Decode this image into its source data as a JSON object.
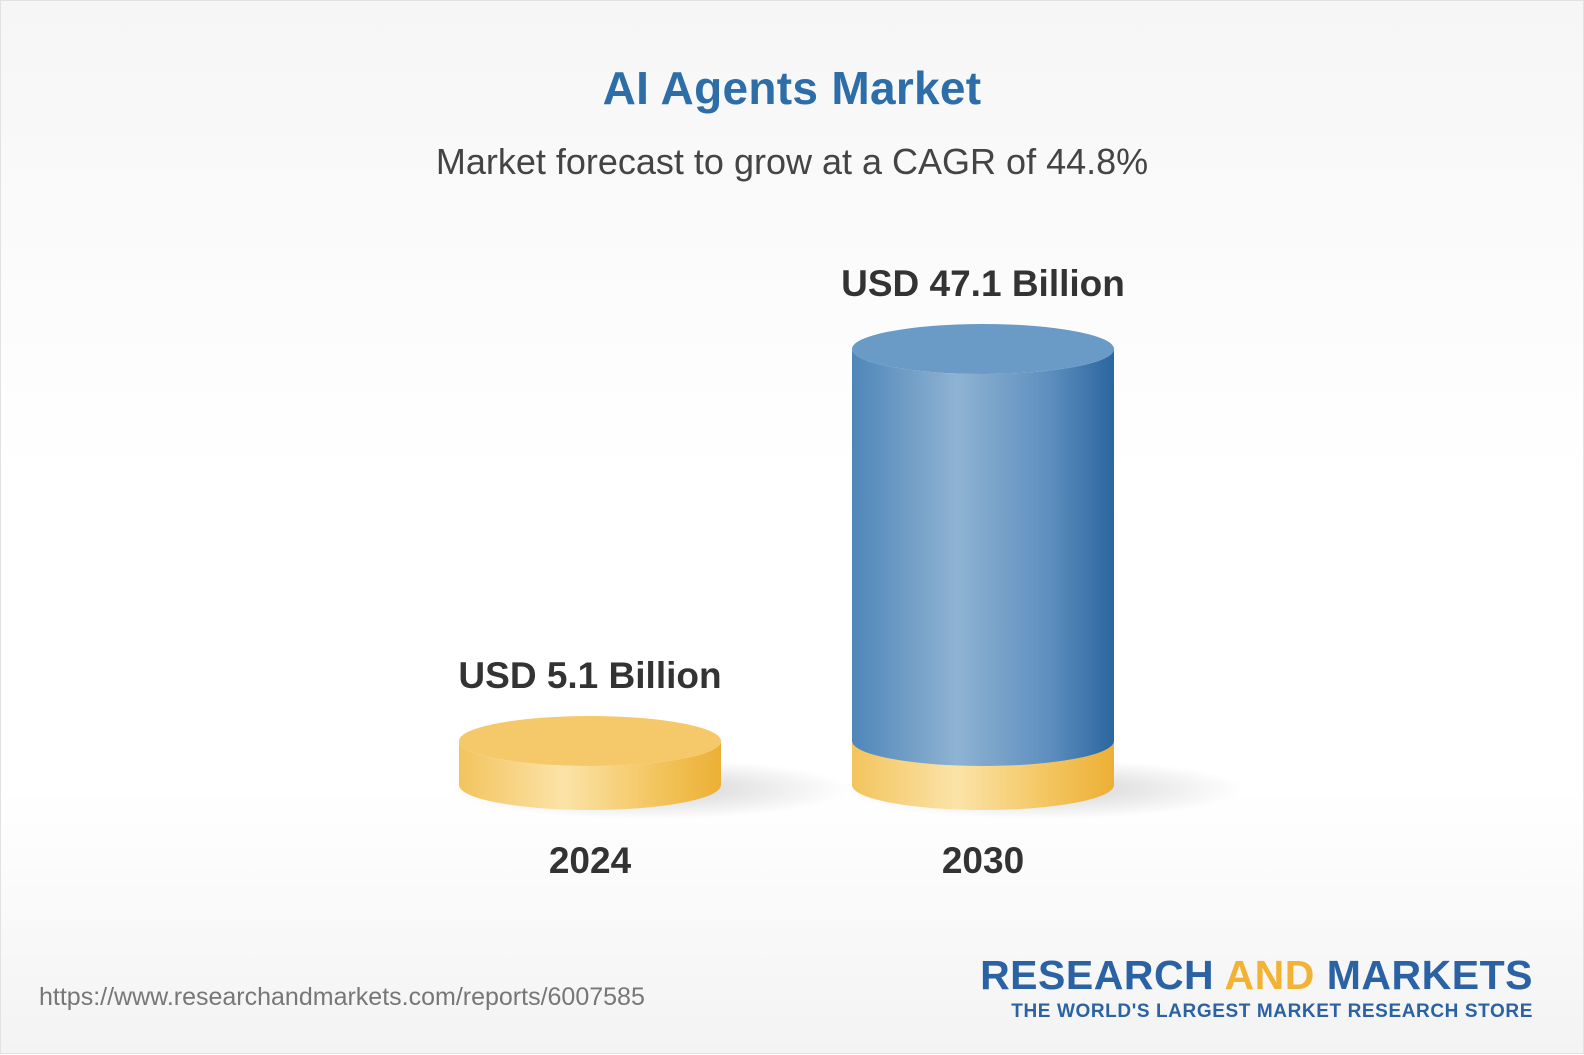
{
  "title": "AI Agents Market",
  "subtitle": "Market forecast to grow at a CAGR of 44.8%",
  "chart_data": {
    "type": "bar",
    "categories": [
      "2024",
      "2030"
    ],
    "values": [
      5.1,
      47.1
    ],
    "data_labels": [
      "USD 5.1 Billion",
      "USD 47.1 Billion"
    ],
    "title": "AI Agents Market",
    "subtitle": "Market forecast to grow at a CAGR of 44.8%",
    "xlabel": "",
    "ylabel": "",
    "unit": "USD Billion",
    "style": "3d-cylinder",
    "grid": false,
    "legend": "none",
    "colors": {
      "base": "#f5c96a",
      "base_dark": "#eeb43e",
      "base_light": "#fae5b2",
      "bar": "#5b8fbe",
      "bar_dark": "#2d68a0",
      "bar_light": "#8fb3d2",
      "bar_top": "#6a9ac6"
    }
  },
  "source_url": "https://www.researchandmarkets.com/reports/6007585",
  "logo": {
    "word1": "RESEARCH",
    "word2": "AND",
    "word3": "MARKETS",
    "tagline": "THE WORLD'S LARGEST MARKET RESEARCH STORE"
  }
}
